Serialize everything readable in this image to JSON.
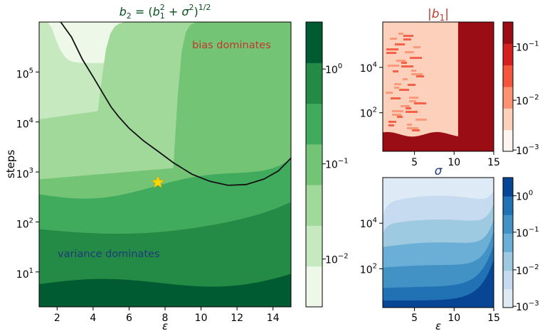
{
  "chart_data": [
    {
      "type": "heatmap",
      "panel": "main",
      "title": "b₂ = (b₁² + σ²)¹ᐟ²",
      "title_parts": {
        "lhs": "b",
        "lhs_sub": "2",
        "eq": " = (",
        "b": "b",
        "b_sub": "1",
        "b_sup": "2",
        "plus": " + σ",
        "s_sup": "2",
        "close": ")",
        "exp": "1/2"
      },
      "title_color": "#0a4d1f",
      "xlabel": "ε",
      "ylabel": "steps",
      "x_ticks": [
        2,
        4,
        6,
        8,
        10,
        12,
        14
      ],
      "xlim": [
        1,
        15
      ],
      "y_scale": "log",
      "ylim": [
        2,
        1000000
      ],
      "y_ticks": [
        {
          "value": 10,
          "label": "10",
          "exp": "1"
        },
        {
          "value": 100,
          "label": "10",
          "exp": "2"
        },
        {
          "value": 1000,
          "label": "10",
          "exp": "3"
        },
        {
          "value": 10000,
          "label": "10",
          "exp": "4"
        },
        {
          "value": 100000,
          "label": "10",
          "exp": "5"
        }
      ],
      "colormap": "Greens",
      "level_colors": [
        "#edf8e9",
        "#c7e9c0",
        "#a1d99b",
        "#74c476",
        "#41ab5d",
        "#238b45",
        "#005a32"
      ],
      "boundary_curve": [
        [
          2.2,
          1000000
        ],
        [
          2.8,
          500000
        ],
        [
          3.4,
          180000
        ],
        [
          4.0,
          80000
        ],
        [
          4.5,
          40000
        ],
        [
          5.0,
          20000
        ],
        [
          5.4,
          13000
        ],
        [
          6.0,
          7500
        ],
        [
          6.8,
          4200
        ],
        [
          7.6,
          2600
        ],
        [
          8.5,
          1500
        ],
        [
          9.5,
          900
        ],
        [
          10.5,
          650
        ],
        [
          11.5,
          540
        ],
        [
          12.5,
          560
        ],
        [
          13.5,
          720
        ],
        [
          14.3,
          1050
        ],
        [
          15.0,
          1900
        ]
      ],
      "marker": {
        "shape": "star",
        "x": 7.6,
        "y": 620,
        "color": "#ffd600"
      },
      "annotations": [
        {
          "text": "bias dominates",
          "color": "#c0392b"
        },
        {
          "text": "variance dominates",
          "color": "#1f3a7a"
        }
      ],
      "colorbar": {
        "scale": "log",
        "range": [
          0.004,
          3
        ],
        "ticks": [
          {
            "label": "10",
            "exp": "0"
          },
          {
            "label": "10",
            "exp": "−1"
          },
          {
            "label": "10",
            "exp": "−2"
          }
        ]
      }
    },
    {
      "type": "heatmap",
      "panel": "top-right",
      "title": "|b₁|",
      "title_parts": {
        "pre": "|b",
        "sub": "1",
        "post": "|"
      },
      "title_color": "#c0392b",
      "x_ticks": [
        5,
        10,
        15
      ],
      "xlim": [
        1,
        15
      ],
      "y_scale": "log",
      "ylim": [
        2,
        1000000
      ],
      "y_ticks": [
        {
          "label": "10",
          "exp": "2"
        },
        {
          "label": "10",
          "exp": "4"
        }
      ],
      "colormap": "Reds",
      "level_colors": [
        "#fff5f0",
        "#fdd0bc",
        "#fc9272",
        "#f5553c",
        "#d42020",
        "#9b0d14"
      ],
      "colorbar": {
        "scale": "log",
        "range": [
          0.001,
          0.3
        ],
        "ticks": [
          {
            "label": "10",
            "exp": "−1"
          },
          {
            "label": "10",
            "exp": "−2"
          },
          {
            "label": "10",
            "exp": "−3"
          }
        ]
      }
    },
    {
      "type": "heatmap",
      "panel": "bottom-right",
      "title": "σ",
      "title_color": "#1f3a7a",
      "xlabel": "ε",
      "x_ticks": [
        5,
        10,
        15
      ],
      "xlim": [
        1,
        15
      ],
      "y_scale": "log",
      "ylim": [
        2,
        1000000
      ],
      "y_ticks": [
        {
          "label": "10",
          "exp": "2"
        },
        {
          "label": "10",
          "exp": "4"
        }
      ],
      "colormap": "Blues",
      "level_colors": [
        "#deebf7",
        "#c6dbef",
        "#9ecae1",
        "#6baed6",
        "#4292c6",
        "#2171b5",
        "#084594"
      ],
      "colorbar": {
        "scale": "log",
        "range": [
          0.001,
          3
        ],
        "ticks": [
          {
            "label": "10",
            "exp": "0"
          },
          {
            "label": "10",
            "exp": "−1"
          },
          {
            "label": "10",
            "exp": "−2"
          },
          {
            "label": "10",
            "exp": "−3"
          }
        ]
      }
    }
  ]
}
